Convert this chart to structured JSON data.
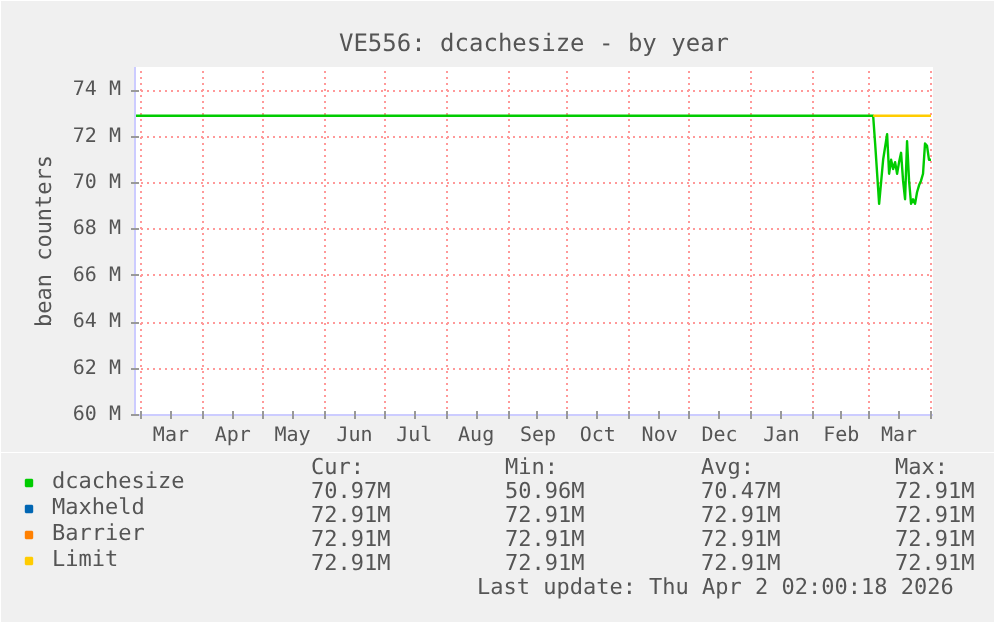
{
  "chart_data": {
    "type": "line",
    "title": "VE556: dcachesize - by year",
    "ylabel": "bean counters",
    "xlim": [
      "2025-02-26",
      "2026-04-02"
    ],
    "xticks": [
      {
        "value": "2025-03-01",
        "label": null
      },
      {
        "value": "2025-03-16",
        "label": "Mar"
      },
      {
        "value": "2025-04-01",
        "label": null
      },
      {
        "value": "2025-04-16",
        "label": "Apr"
      },
      {
        "value": "2025-05-01",
        "label": null
      },
      {
        "value": "2025-05-16",
        "label": "May"
      },
      {
        "value": "2025-06-01",
        "label": null
      },
      {
        "value": "2025-06-16",
        "label": "Jun"
      },
      {
        "value": "2025-07-01",
        "label": null
      },
      {
        "value": "2025-07-16",
        "label": "Jul"
      },
      {
        "value": "2025-08-01",
        "label": null
      },
      {
        "value": "2025-08-16",
        "label": "Aug"
      },
      {
        "value": "2025-09-01",
        "label": null
      },
      {
        "value": "2025-09-16",
        "label": "Sep"
      },
      {
        "value": "2025-10-01",
        "label": null
      },
      {
        "value": "2025-10-16",
        "label": "Oct"
      },
      {
        "value": "2025-11-01",
        "label": null
      },
      {
        "value": "2025-11-16",
        "label": "Nov"
      },
      {
        "value": "2025-12-01",
        "label": null
      },
      {
        "value": "2025-12-16",
        "label": "Dec"
      },
      {
        "value": "2026-01-01",
        "label": null
      },
      {
        "value": "2026-01-16",
        "label": "Jan"
      },
      {
        "value": "2026-02-01",
        "label": null
      },
      {
        "value": "2026-02-15",
        "label": "Feb"
      },
      {
        "value": "2026-03-01",
        "label": null
      },
      {
        "value": "2026-03-16",
        "label": "Mar"
      },
      {
        "value": "2026-04-01",
        "label": null
      }
    ],
    "ylim": [
      60,
      75
    ],
    "yticks": [
      {
        "value": 60,
        "label": "60 M"
      },
      {
        "value": 62,
        "label": "62 M"
      },
      {
        "value": 64,
        "label": "64 M"
      },
      {
        "value": 66,
        "label": "66 M"
      },
      {
        "value": 68,
        "label": "68 M"
      },
      {
        "value": 70,
        "label": "70 M"
      },
      {
        "value": 72,
        "label": "72 M"
      },
      {
        "value": 74,
        "label": "74 M"
      }
    ],
    "grid": true,
    "legend": "bottom",
    "series": [
      {
        "name": "dcachesize",
        "color": "#00cc00",
        "x": [
          "2025-02-26",
          "2026-03-03",
          "2026-03-04",
          "2026-03-06",
          "2026-03-08",
          "2026-03-10",
          "2026-03-11",
          "2026-03-12",
          "2026-03-13",
          "2026-03-14",
          "2026-03-15",
          "2026-03-16",
          "2026-03-17",
          "2026-03-18",
          "2026-03-19",
          "2026-03-20",
          "2026-03-21",
          "2026-03-22",
          "2026-03-23",
          "2026-03-24",
          "2026-03-25",
          "2026-03-26",
          "2026-03-27",
          "2026-03-28",
          "2026-03-29",
          "2026-03-30",
          "2026-03-31",
          "2026-04-01"
        ],
        "values": [
          72.9,
          72.9,
          71.7,
          69.1,
          71.0,
          72.1,
          70.4,
          71.0,
          70.6,
          70.9,
          70.4,
          70.9,
          71.3,
          70.1,
          69.3,
          71.8,
          70.1,
          69.1,
          69.3,
          69.1,
          69.6,
          69.9,
          70.1,
          70.4,
          71.7,
          71.6,
          71.0,
          71.0
        ]
      },
      {
        "name": "Maxheld",
        "color": "#0066b3"
      },
      {
        "name": "Barrier",
        "color": "#ff8000"
      },
      {
        "name": "Limit",
        "color": "#ffcc00",
        "x": [
          "2026-03-03",
          "2026-04-01"
        ],
        "values": [
          72.9,
          72.9
        ]
      }
    ],
    "annotations": [
      "Cur:",
      "Min:",
      "Avg:",
      "Max:",
      "70.97M",
      "50.96M",
      "70.47M",
      "72.91M",
      "72.91M",
      "72.91M",
      "72.91M",
      "72.91M",
      "72.91M",
      "72.91M",
      "72.91M",
      "72.91M",
      "72.91M",
      "72.91M",
      "72.91M",
      "72.91M",
      "Last update: Thu Apr  2 02:00:18 2026"
    ]
  }
}
